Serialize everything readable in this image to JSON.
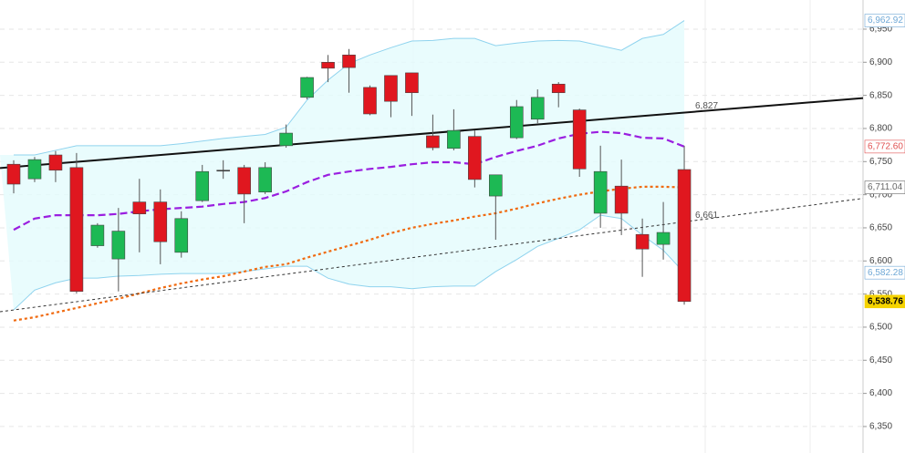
{
  "chart_data": {
    "type": "candlestick",
    "categories": [
      null,
      null,
      null,
      null,
      null,
      null,
      null,
      null,
      null,
      null,
      null,
      null,
      null,
      null,
      null,
      null,
      null,
      null,
      null,
      null,
      null,
      null,
      null,
      null,
      null,
      null,
      null,
      null,
      null,
      null,
      null,
      null,
      null
    ],
    "open": [
      6746,
      6724,
      6760,
      6741,
      6623,
      6603,
      6689,
      6689,
      6613,
      6691,
      6737,
      6741,
      6704,
      6774,
      6847,
      6900,
      6911,
      6862,
      6880,
      6884,
      6789,
      6770,
      6788,
      6698,
      6786,
      6814,
      6867,
      6828,
      6672,
      6713,
      6640,
      6625,
      6738
    ],
    "high": [
      6752,
      6757,
      6766,
      6763,
      6657,
      6680,
      6724,
      6708,
      6675,
      6745,
      6752,
      6745,
      6749,
      6806,
      6878,
      6911,
      6920,
      6865,
      6880,
      6884,
      6821,
      6829,
      6797,
      6730,
      6843,
      6859,
      6870,
      6830,
      6774,
      6753,
      6664,
      6689,
      6774
    ],
    "low": [
      6702,
      6719,
      6719,
      6551,
      6620,
      6554,
      6613,
      6595,
      6605,
      6689,
      6724,
      6657,
      6701,
      6771,
      6844,
      6870,
      6854,
      6820,
      6817,
      6819,
      6767,
      6767,
      6711,
      6632,
      6784,
      6808,
      6832,
      6727,
      6650,
      6639,
      6576,
      6602,
      6534
    ],
    "close": [
      6716,
      6753,
      6737,
      6554,
      6654,
      6645,
      6671,
      6629,
      6664,
      6735,
      6736,
      6701,
      6741,
      6793,
      6877,
      6891,
      6892,
      6822,
      6841,
      6854,
      6771,
      6797,
      6723,
      6730,
      6833,
      6847,
      6854,
      6739,
      6735,
      6672,
      6618,
      6643,
      6538.76
    ],
    "up_color": "#1db954",
    "down_color": "#e0171f",
    "overlays": [
      {
        "color": "#8fd3ee",
        "style": "solid",
        "values": [
          6760,
          6760,
          6767,
          6774,
          6774,
          6774,
          6774,
          6774,
          6777,
          6781,
          6785,
          6788,
          6791,
          6802,
          6843,
          6873,
          6898,
          6911,
          6922,
          6932,
          6933,
          6936,
          6936,
          6925,
          6929,
          6932,
          6933,
          6932,
          6925,
          6918,
          6936,
          6942,
          6962.92
        ]
      },
      {
        "color": "#8fd3ee",
        "style": "solid",
        "values": [
          6526,
          6556,
          6567,
          6574,
          6574,
          6577,
          6578,
          6580,
          6581,
          6581,
          6581,
          6584,
          6588,
          6592,
          6592,
          6574,
          6565,
          6561,
          6561,
          6558,
          6561,
          6562,
          6562,
          6584,
          6602,
          6622,
          6634,
          6647,
          6669,
          6664,
          6639,
          6616,
          6582.28
        ]
      },
      {
        "color": "#9a1ee0",
        "style": "dashed",
        "values": [
          6647,
          6664,
          6669,
          6669,
          6669,
          6671,
          6675,
          6678,
          6680,
          6682,
          6686,
          6689,
          6695,
          6705,
          6719,
          6730,
          6735,
          6739,
          6742,
          6746,
          6749,
          6749,
          6746,
          6757,
          6766,
          6774,
          6785,
          6792,
          6795,
          6793,
          6786,
          6785,
          6772.6
        ]
      },
      {
        "color": "#f06a10",
        "style": "dotted",
        "values": [
          6510,
          6515,
          6522,
          6529,
          6536,
          6543,
          6551,
          6559,
          6566,
          6572,
          6577,
          6584,
          6591,
          6595,
          6605,
          6614,
          6623,
          6632,
          6642,
          6650,
          6656,
          6661,
          6667,
          6672,
          6679,
          6687,
          6694,
          6700,
          6705,
          6709,
          6712,
          6712,
          6711.04
        ]
      }
    ],
    "trendlines": [
      {
        "label": "6,827",
        "style": "solid",
        "color": "#111111",
        "values": [
          6742,
          6824
        ]
      },
      {
        "label": "6,661",
        "style": "dotted",
        "color": "#333333",
        "values": [
          6526,
          6659
        ]
      }
    ],
    "price_labels": [
      {
        "value": 6962.92,
        "label": "6,962.92",
        "color": "#6fa8d6",
        "background": "#ffffff"
      },
      {
        "value": 6772.6,
        "label": "6,772.60",
        "color": "#e05050",
        "background": "#ffffff"
      },
      {
        "value": 6711.04,
        "label": "6,711.04",
        "color": "#666666",
        "background": "#ffffff"
      },
      {
        "value": 6582.28,
        "label": "6,582.28",
        "color": "#6fa8d6",
        "background": "#ffffff"
      },
      {
        "value": 6538.76,
        "label": "6,538.76",
        "color": "#000000",
        "background": "#f5d300"
      }
    ],
    "ylim": [
      6310,
      6994
    ],
    "yticks": [
      {
        "value": 6350,
        "label": "6,350"
      },
      {
        "value": 6400,
        "label": "6,400"
      },
      {
        "value": 6450,
        "label": "6,450"
      },
      {
        "value": 6500,
        "label": "6,500"
      },
      {
        "value": 6550,
        "label": "6,550"
      },
      {
        "value": 6600,
        "label": "6,600"
      },
      {
        "value": 6650,
        "label": "6,650"
      },
      {
        "value": 6700,
        "label": "6,700"
      },
      {
        "value": 6750,
        "label": "6,750"
      },
      {
        "value": 6800,
        "label": "6,800"
      },
      {
        "value": 6850,
        "label": "6,850"
      },
      {
        "value": 6900,
        "label": "6,900"
      },
      {
        "value": 6950,
        "label": "6,950"
      }
    ],
    "grid": true
  }
}
